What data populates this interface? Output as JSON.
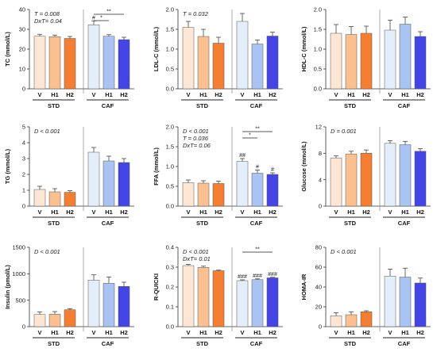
{
  "palette": {
    "STD": [
      "#fde7d4",
      "#fbc08f",
      "#f47f32"
    ],
    "CAF": [
      "#e4eefa",
      "#a9c3f2",
      "#4545e6"
    ],
    "axis": "#333333",
    "bar_edge": "#555555"
  },
  "chart_data": [
    {
      "type": "bar",
      "ylabel": "TC (mmol/L)",
      "ylim": [
        0,
        40
      ],
      "yticks": [
        0,
        10,
        20,
        30,
        40
      ],
      "categories": [
        "V",
        "H1",
        "H2",
        "V",
        "H1",
        "H2"
      ],
      "groups": [
        "STD",
        "CAF"
      ],
      "values": [
        26.5,
        26.3,
        25.4,
        32.3,
        26.5,
        24.8
      ],
      "errors": [
        1.0,
        0.8,
        1.0,
        2.0,
        0.8,
        1.2
      ],
      "annotations": [
        "T = 0.008",
        "DxT= 0.04"
      ],
      "bar_marks": [
        "",
        "",
        "",
        "#",
        "",
        ""
      ],
      "brackets": [
        {
          "from": 3,
          "to": 5,
          "label": "**"
        },
        {
          "from": 3,
          "to": 4,
          "label": "*"
        }
      ]
    },
    {
      "type": "bar",
      "ylabel": "LDL-C (mmol/L)",
      "ylim": [
        0,
        2.0
      ],
      "yticks": [
        0.0,
        0.5,
        1.0,
        1.5,
        2.0
      ],
      "categories": [
        "V",
        "H1",
        "H2",
        "V",
        "H1",
        "H2"
      ],
      "groups": [
        "STD",
        "CAF"
      ],
      "values": [
        1.55,
        1.32,
        1.15,
        1.7,
        1.13,
        1.33
      ],
      "errors": [
        0.15,
        0.18,
        0.15,
        0.2,
        0.1,
        0.1
      ],
      "annotations": [
        "T = 0.032"
      ],
      "bar_marks": [
        "",
        "",
        "",
        "",
        "",
        ""
      ],
      "brackets": []
    },
    {
      "type": "bar",
      "ylabel": "HDL-C (mmol/L)",
      "ylim": [
        0,
        2.0
      ],
      "yticks": [
        0.0,
        0.5,
        1.0,
        1.5,
        2.0
      ],
      "categories": [
        "V",
        "H1",
        "H2",
        "V",
        "H1",
        "H2"
      ],
      "groups": [
        "STD",
        "CAF"
      ],
      "values": [
        1.4,
        1.37,
        1.4,
        1.48,
        1.63,
        1.32
      ],
      "errors": [
        0.22,
        0.2,
        0.18,
        0.25,
        0.18,
        0.12
      ],
      "annotations": [],
      "bar_marks": [
        "",
        "",
        "",
        "",
        "",
        ""
      ],
      "brackets": []
    },
    {
      "type": "bar",
      "ylabel": "TG (mmol/L)",
      "ylim": [
        0,
        5
      ],
      "yticks": [
        0,
        1,
        2,
        3,
        4,
        5
      ],
      "categories": [
        "V",
        "H1",
        "H2",
        "V",
        "H1",
        "H2"
      ],
      "groups": [
        "STD",
        "CAF"
      ],
      "values": [
        1.05,
        0.9,
        0.87,
        3.4,
        2.85,
        2.75
      ],
      "errors": [
        0.2,
        0.2,
        0.1,
        0.3,
        0.3,
        0.25
      ],
      "annotations": [
        "D < 0.001"
      ],
      "bar_marks": [
        "",
        "",
        "",
        "",
        "",
        ""
      ],
      "brackets": []
    },
    {
      "type": "bar",
      "ylabel": "FFA (mmol/L)",
      "ylim": [
        0,
        2.0
      ],
      "yticks": [
        0.0,
        0.5,
        1.0,
        1.5,
        2.0
      ],
      "categories": [
        "V",
        "H1",
        "H2",
        "V",
        "H1",
        "H2"
      ],
      "groups": [
        "STD",
        "CAF"
      ],
      "values": [
        0.59,
        0.58,
        0.57,
        1.13,
        0.83,
        0.8
      ],
      "errors": [
        0.07,
        0.06,
        0.06,
        0.07,
        0.08,
        0.04
      ],
      "annotations": [
        "D < 0.001",
        "T = 0.036",
        "DxT= 0.06"
      ],
      "bar_marks": [
        "",
        "",
        "",
        "##",
        "#",
        "#"
      ],
      "brackets": [
        {
          "from": 3,
          "to": 5,
          "label": "**"
        },
        {
          "from": 3,
          "to": 4,
          "label": "*"
        }
      ]
    },
    {
      "type": "bar",
      "ylabel": "Glucose (mmol/L)",
      "ylim": [
        0,
        12
      ],
      "yticks": [
        0,
        4,
        8,
        12
      ],
      "categories": [
        "V",
        "H1",
        "H2",
        "V",
        "H1",
        "H2"
      ],
      "groups": [
        "STD",
        "CAF"
      ],
      "values": [
        7.3,
        7.9,
        8.0,
        9.5,
        9.3,
        8.3
      ],
      "errors": [
        0.3,
        0.4,
        0.5,
        0.4,
        0.5,
        0.4
      ],
      "annotations": [
        "D = 0.001"
      ],
      "bar_marks": [
        "",
        "",
        "",
        "",
        "",
        ""
      ],
      "brackets": []
    },
    {
      "type": "bar",
      "ylabel": "Insulin (pmol/L)",
      "ylim": [
        0,
        1500
      ],
      "yticks": [
        0,
        500,
        1000,
        1500
      ],
      "categories": [
        "V",
        "H1",
        "H2",
        "V",
        "H1",
        "H2"
      ],
      "groups": [
        "STD",
        "CAF"
      ],
      "values": [
        230,
        235,
        320,
        880,
        820,
        760
      ],
      "errors": [
        50,
        50,
        20,
        100,
        120,
        80
      ],
      "annotations": [
        "D < 0.001"
      ],
      "bar_marks": [
        "",
        "",
        "",
        "",
        "",
        ""
      ],
      "brackets": []
    },
    {
      "type": "bar",
      "ylabel": "R-QUICKI",
      "ylim": [
        0,
        0.4
      ],
      "yticks": [
        0.0,
        0.1,
        0.2,
        0.3,
        0.4
      ],
      "categories": [
        "V",
        "H1",
        "H2",
        "V",
        "H1",
        "H2"
      ],
      "groups": [
        "STD",
        "CAF"
      ],
      "values": [
        0.308,
        0.299,
        0.282,
        0.232,
        0.237,
        0.246
      ],
      "errors": [
        0.006,
        0.006,
        0.003,
        0.004,
        0.004,
        0.003
      ],
      "annotations": [
        "D < 0.001",
        "DxT= 0.01"
      ],
      "bar_marks": [
        "",
        "",
        "",
        "###",
        "###",
        "###"
      ],
      "brackets": [
        {
          "from": 3,
          "to": 5,
          "label": "**"
        }
      ]
    },
    {
      "type": "bar",
      "ylabel": "HOMA-IR",
      "ylim": [
        0,
        80
      ],
      "yticks": [
        0,
        20,
        40,
        60,
        80
      ],
      "categories": [
        "V",
        "H1",
        "H2",
        "V",
        "H1",
        "H2"
      ],
      "groups": [
        "STD",
        "CAF"
      ],
      "values": [
        11,
        12,
        15,
        51,
        50,
        44
      ],
      "errors": [
        3,
        3,
        1,
        7,
        9,
        5
      ],
      "annotations": [
        "D < 0.001"
      ],
      "bar_marks": [
        "",
        "",
        "",
        "",
        "",
        ""
      ],
      "brackets": []
    }
  ]
}
